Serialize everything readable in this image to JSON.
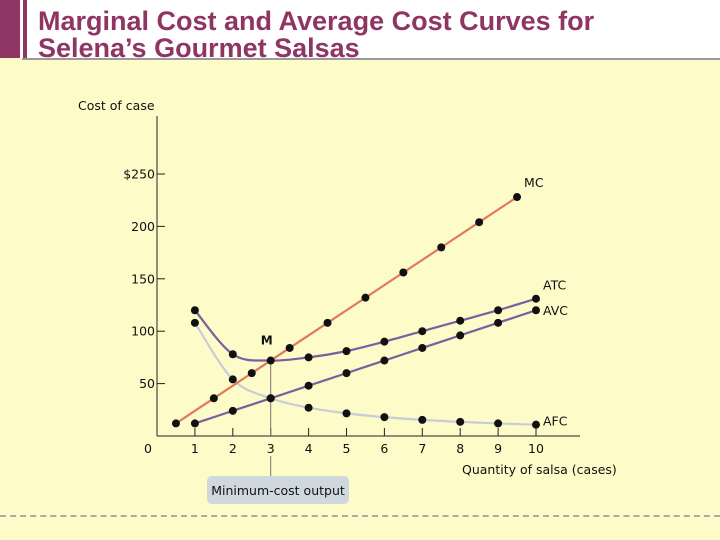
{
  "slide": {
    "title_line1": "Marginal Cost and Average Cost Curves for",
    "title_line2": "Selena’s Gourmet Salsas",
    "accent_color": "#8e3563",
    "background_color": "#fdfbc8"
  },
  "chart_data": {
    "type": "line",
    "ylabel": "Cost of case",
    "xlabel": "Quantity of salsa (cases)",
    "xlim": [
      0,
      11
    ],
    "ylim": [
      0,
      300
    ],
    "xticks": [
      1,
      2,
      3,
      4,
      5,
      6,
      7,
      8,
      9,
      10
    ],
    "x_tick_labels": [
      "1",
      "2",
      "3",
      "4",
      "5",
      "6",
      "7",
      "8",
      "9",
      "10"
    ],
    "y_tick_labels": [
      {
        "value": 250,
        "label": "$250"
      },
      {
        "value": 200,
        "label": "200"
      },
      {
        "value": 150,
        "label": "150"
      },
      {
        "value": 100,
        "label": "100"
      },
      {
        "value": 50,
        "label": "50"
      }
    ],
    "origin_label": "0",
    "series": [
      {
        "name": "MC",
        "color": "#e07a5f",
        "x": [
          0.5,
          1.5,
          2.5,
          3.5,
          4.5,
          5.5,
          6.5,
          7.5,
          8.5,
          9.5
        ],
        "y": [
          12,
          36,
          60,
          84,
          108,
          132,
          156,
          180,
          204,
          228
        ],
        "points": [
          {
            "x": 0.5,
            "y": 12
          },
          {
            "x": 1.5,
            "y": 36
          },
          {
            "x": 2.5,
            "y": 60
          },
          {
            "x": 3.5,
            "y": 84
          },
          {
            "x": 4.5,
            "y": 108
          },
          {
            "x": 5.5,
            "y": 132
          },
          {
            "x": 6.5,
            "y": 156
          },
          {
            "x": 7.5,
            "y": 180
          },
          {
            "x": 8.5,
            "y": 204
          },
          {
            "x": 9.5,
            "y": 228
          }
        ]
      },
      {
        "name": "ATC",
        "color": "#7b5ea1",
        "x": [
          1,
          2,
          3,
          4,
          5,
          6,
          7,
          8,
          9,
          10
        ],
        "y": [
          120,
          78,
          72,
          75,
          81,
          90,
          100,
          110,
          120,
          131
        ],
        "points": [
          {
            "x": 1,
            "y": 120
          },
          {
            "x": 2,
            "y": 78
          },
          {
            "x": 3,
            "y": 72
          },
          {
            "x": 4,
            "y": 75
          },
          {
            "x": 5,
            "y": 81
          },
          {
            "x": 6,
            "y": 90
          },
          {
            "x": 7,
            "y": 100
          },
          {
            "x": 8,
            "y": 110
          },
          {
            "x": 9,
            "y": 120
          },
          {
            "x": 10,
            "y": 131
          }
        ]
      },
      {
        "name": "AVC",
        "color": "#7b5ea1",
        "x": [
          1,
          2,
          3,
          4,
          5,
          6,
          7,
          8,
          9,
          10
        ],
        "y": [
          12,
          24,
          36,
          48,
          60,
          72,
          84,
          96,
          108,
          120
        ],
        "points": [
          {
            "x": 1,
            "y": 12
          },
          {
            "x": 2,
            "y": 24
          },
          {
            "x": 3,
            "y": 36
          },
          {
            "x": 4,
            "y": 48
          },
          {
            "x": 5,
            "y": 60
          },
          {
            "x": 6,
            "y": 72
          },
          {
            "x": 7,
            "y": 84
          },
          {
            "x": 8,
            "y": 96
          },
          {
            "x": 9,
            "y": 108
          },
          {
            "x": 10,
            "y": 120
          }
        ]
      },
      {
        "name": "AFC",
        "color": "#c9cbd9",
        "x": [
          1,
          2,
          3,
          4,
          5,
          6,
          7,
          8,
          9,
          10
        ],
        "y": [
          108,
          54,
          36,
          27,
          21.6,
          18,
          15.4,
          13.5,
          12,
          10.8
        ],
        "points": [
          {
            "x": 1,
            "y": 108
          },
          {
            "x": 2,
            "y": 54
          },
          {
            "x": 3,
            "y": 36
          },
          {
            "x": 4,
            "y": 27
          },
          {
            "x": 5,
            "y": 21.6
          },
          {
            "x": 6,
            "y": 18
          },
          {
            "x": 7,
            "y": 15.4
          },
          {
            "x": 8,
            "y": 13.5
          },
          {
            "x": 9,
            "y": 12
          },
          {
            "x": 10,
            "y": 10.8
          }
        ]
      }
    ],
    "annotations": [
      {
        "label": "M",
        "x": 3,
        "y": 72,
        "description": "minimum point of ATC"
      },
      {
        "label": "Minimum-cost output",
        "x": 3,
        "style": "callout box"
      }
    ],
    "callout_color": "#cfd8dc",
    "grid": false,
    "legend": "curve labels placed at right end of each curve"
  }
}
